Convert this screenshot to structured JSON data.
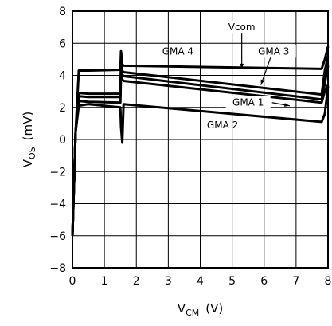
{
  "chart_data": {
    "type": "line",
    "xlabel": {
      "main": "V",
      "sub": "CM",
      "unit": "(V)"
    },
    "ylabel": {
      "main": "V",
      "sub": "OS",
      "unit": "(mV)"
    },
    "xlim": [
      0,
      8
    ],
    "ylim": [
      -8,
      8
    ],
    "xticks": [
      "0",
      "1",
      "2",
      "3",
      "4",
      "5",
      "6",
      "7",
      "8"
    ],
    "yticks": [
      "-8",
      "-6",
      "-4",
      "-2",
      "0",
      "2",
      "4",
      "6",
      "8"
    ],
    "grid": true,
    "series": [
      {
        "name": "GMA 4",
        "x": [
          0.0,
          0.1,
          0.2,
          0.5,
          1.5,
          1.52,
          1.56,
          1.6,
          7.8,
          7.9,
          8.0
        ],
        "y": [
          -6.0,
          0.5,
          4.3,
          4.3,
          4.35,
          5.5,
          4.7,
          4.6,
          4.4,
          5.0,
          5.8
        ]
      },
      {
        "name": "Vcom",
        "x": [
          0.0,
          0.1,
          0.2,
          0.5,
          1.5,
          1.52,
          1.56,
          1.6,
          7.8,
          7.9,
          8.0
        ],
        "y": [
          -6.0,
          0.5,
          2.9,
          2.85,
          2.85,
          4.8,
          4.3,
          4.2,
          2.8,
          4.3,
          5.2
        ]
      },
      {
        "name": "GMA 3",
        "x": [
          0.0,
          0.1,
          0.2,
          0.5,
          1.5,
          1.52,
          1.56,
          1.6,
          7.8,
          7.9,
          8.0
        ],
        "y": [
          -6.0,
          0.5,
          2.7,
          2.65,
          2.65,
          4.5,
          4.05,
          3.95,
          2.5,
          3.5,
          4.6
        ]
      },
      {
        "name": "GMA 1",
        "x": [
          0.0,
          0.1,
          0.2,
          0.5,
          1.5,
          1.52,
          1.56,
          1.6,
          7.8,
          7.9,
          8.0
        ],
        "y": [
          -6.0,
          0.5,
          2.4,
          2.35,
          2.3,
          4.2,
          3.75,
          3.65,
          2.3,
          3.0,
          3.4
        ]
      },
      {
        "name": "GMA 2",
        "x": [
          0.0,
          0.1,
          0.2,
          0.5,
          1.5,
          1.52,
          1.56,
          1.6,
          7.8,
          7.9,
          8.0
        ],
        "y": [
          -6.0,
          0.5,
          2.1,
          2.2,
          2.0,
          0.8,
          -0.2,
          2.2,
          1.1,
          1.6,
          3.3
        ]
      }
    ],
    "annotations": [
      {
        "text": "Vcom",
        "x": 5.3,
        "y": 6.8,
        "target_x": 5.3,
        "target_y": 4.4
      },
      {
        "text": "GMA 4",
        "x": 3.3,
        "y": 5.3
      },
      {
        "text": "GMA 3",
        "x": 6.3,
        "y": 5.3,
        "target_x": 5.9,
        "target_y": 3.4
      },
      {
        "text": "GMA 1",
        "x": 5.5,
        "y": 2.1,
        "target_x": 6.8,
        "target_y": 2.1
      },
      {
        "text": "GMA 2",
        "x": 4.7,
        "y": 0.7
      }
    ]
  }
}
